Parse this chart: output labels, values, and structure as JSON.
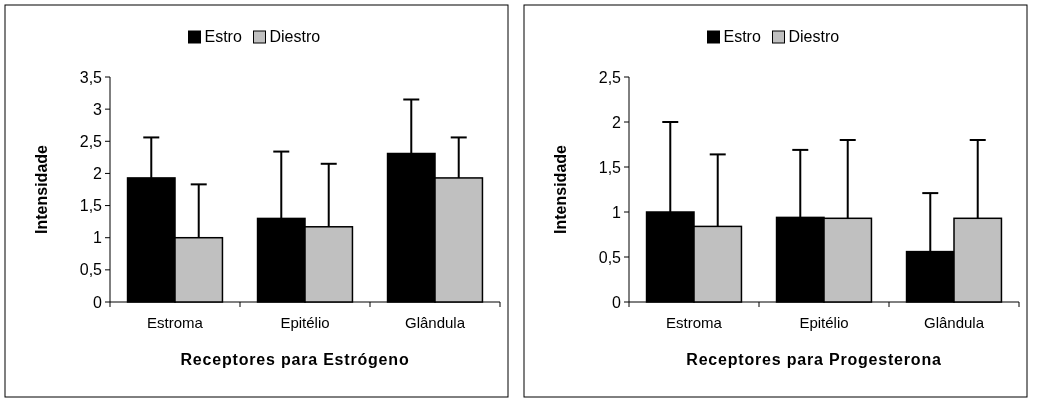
{
  "chart_data": [
    {
      "type": "bar",
      "xlabel": "Receptores para Estrógeno",
      "ylabel": "Intensidade",
      "categories": [
        "Estroma",
        "Epitélio",
        "Glândula"
      ],
      "ylim": [
        0,
        3.5
      ],
      "yticks": [
        {
          "value": 0,
          "label": "0"
        },
        {
          "value": 0.5,
          "label": "0,5"
        },
        {
          "value": 1,
          "label": "1"
        },
        {
          "value": 1.5,
          "label": "1,5"
        },
        {
          "value": 2,
          "label": "2"
        },
        {
          "value": 2.5,
          "label": "2,5"
        },
        {
          "value": 3,
          "label": "3"
        },
        {
          "value": 3.5,
          "label": "3,5"
        }
      ],
      "legend": "top",
      "grid": false,
      "series": [
        {
          "name": "Estro",
          "color": "#000000",
          "values": [
            1.93,
            1.3,
            2.31
          ],
          "errors": [
            [
              1.93,
              2.56
            ],
            [
              1.3,
              2.34
            ],
            [
              2.31,
              3.15
            ]
          ]
        },
        {
          "name": "Diestro",
          "color": "#c0c0c0",
          "values": [
            1.0,
            1.17,
            1.93
          ],
          "errors": [
            [
              1.0,
              1.83
            ],
            [
              1.17,
              2.15
            ],
            [
              1.93,
              2.56
            ]
          ]
        }
      ]
    },
    {
      "type": "bar",
      "xlabel": "Receptores para Progesterona",
      "ylabel": "Intensidade",
      "categories": [
        "Estroma",
        "Epitélio",
        "Glândula"
      ],
      "ylim": [
        0,
        2.5
      ],
      "yticks": [
        {
          "value": 0,
          "label": "0"
        },
        {
          "value": 0.5,
          "label": "0,5"
        },
        {
          "value": 1,
          "label": "1"
        },
        {
          "value": 1.5,
          "label": "1,5"
        },
        {
          "value": 2,
          "label": "2"
        },
        {
          "value": 2.5,
          "label": "2,5"
        }
      ],
      "legend": "top",
      "grid": false,
      "series": [
        {
          "name": "Estro",
          "color": "#000000",
          "values": [
            1.0,
            0.94,
            0.56
          ],
          "errors": [
            [
              1.0,
              2.0
            ],
            [
              0.94,
              1.69
            ],
            [
              0.56,
              1.21
            ]
          ]
        },
        {
          "name": "Diestro",
          "color": "#c0c0c0",
          "values": [
            0.84,
            0.93,
            0.93
          ],
          "errors": [
            [
              0.84,
              1.64
            ],
            [
              0.93,
              1.8
            ],
            [
              0.93,
              1.8
            ]
          ]
        }
      ]
    }
  ]
}
